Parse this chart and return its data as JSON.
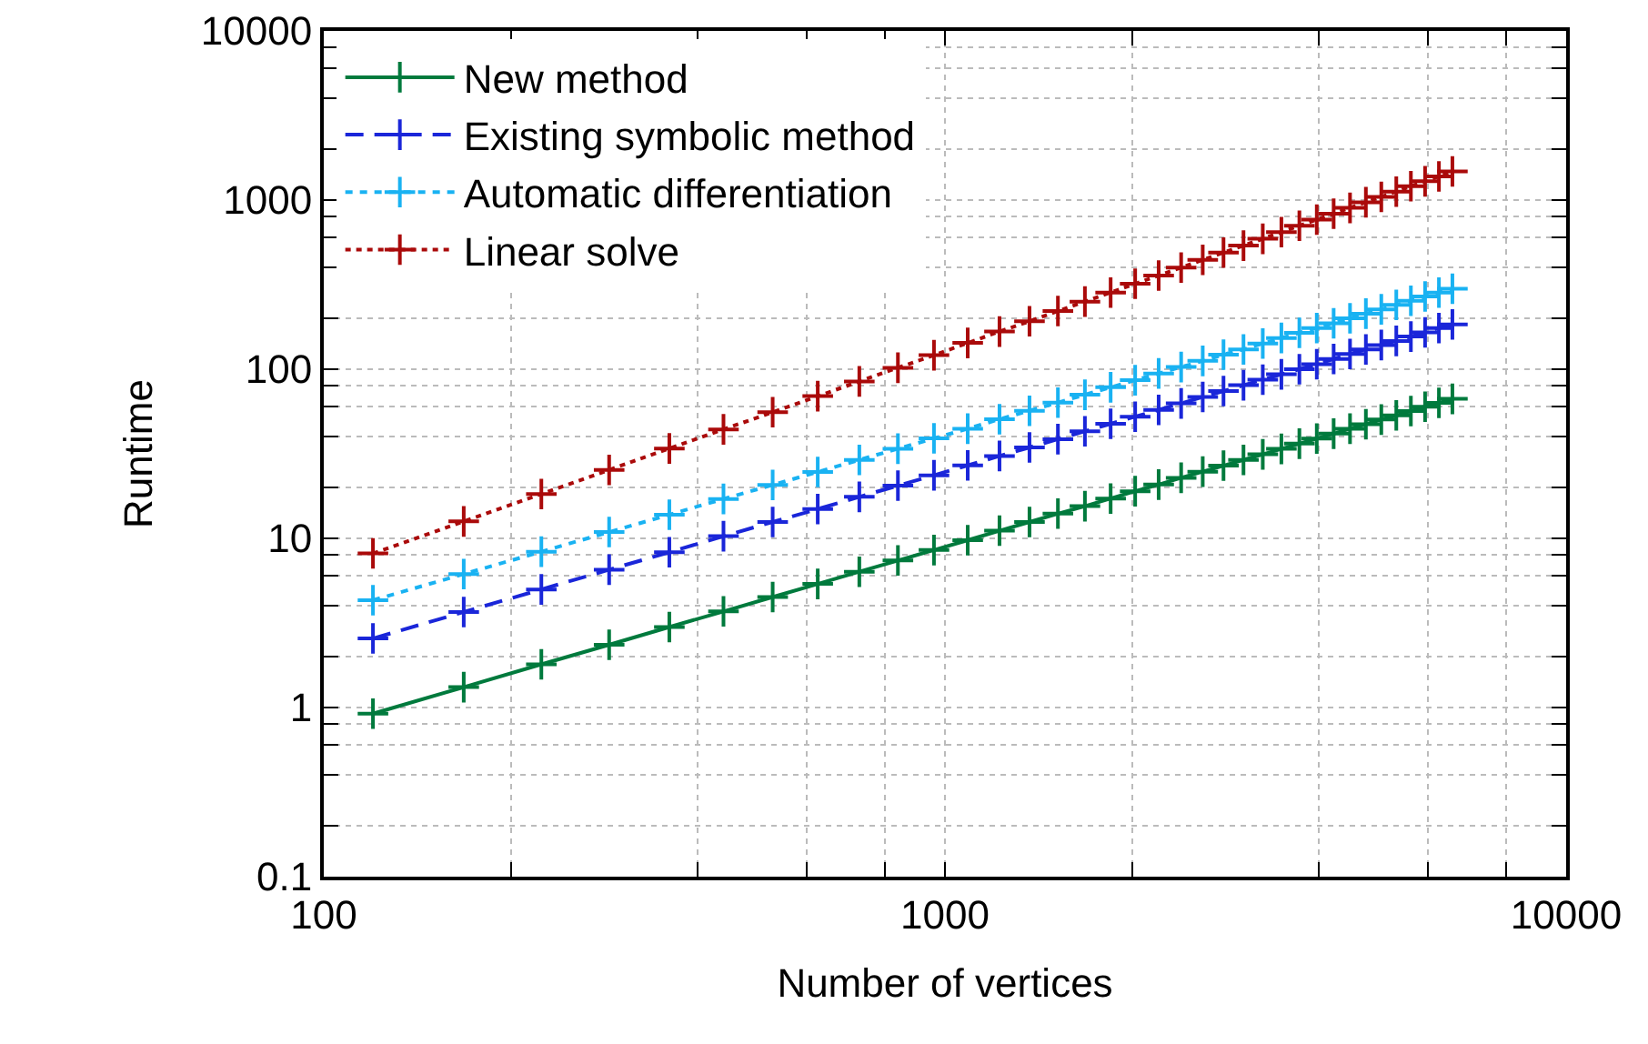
{
  "chart_data": {
    "type": "line",
    "xlabel": "Number of vertices",
    "ylabel": "Runtime",
    "log": "xy",
    "grid": true,
    "legend": "top left",
    "marker": "cross",
    "xlim": [
      100,
      10000
    ],
    "ylim": [
      0.1,
      10000
    ],
    "xticks": [
      100,
      {
        "value": 200,
        "label": null
      },
      {
        "value": 400,
        "label": null
      },
      {
        "value": 600,
        "label": null
      },
      {
        "value": 800,
        "label": null
      },
      1000,
      {
        "value": 2000,
        "label": null
      },
      {
        "value": 4000,
        "label": null
      },
      {
        "value": 6000,
        "label": null
      },
      {
        "value": 8000,
        "label": null
      },
      10000
    ],
    "yticks": [
      0.1,
      {
        "value": 0.2,
        "label": null
      },
      {
        "value": 0.4,
        "label": null
      },
      {
        "value": 0.6,
        "label": null
      },
      {
        "value": 0.8,
        "label": null
      },
      1,
      {
        "value": 2,
        "label": null
      },
      {
        "value": 4,
        "label": null
      },
      {
        "value": 6,
        "label": null
      },
      {
        "value": 8,
        "label": null
      },
      10,
      {
        "value": 20,
        "label": null
      },
      {
        "value": 40,
        "label": null
      },
      {
        "value": 60,
        "label": null
      },
      {
        "value": 80,
        "label": null
      },
      100,
      {
        "value": 200,
        "label": null
      },
      {
        "value": 400,
        "label": null
      },
      {
        "value": 600,
        "label": null
      },
      {
        "value": 800,
        "label": null
      },
      1000,
      {
        "value": 2000,
        "label": null
      },
      {
        "value": 4000,
        "label": null
      },
      {
        "value": 6000,
        "label": null
      },
      {
        "value": 8000,
        "label": null
      },
      10000
    ],
    "x": [
      120,
      168,
      224,
      288,
      360,
      440,
      528,
      624,
      728,
      840,
      960,
      1088,
      1224,
      1368,
      1520,
      1680,
      1848,
      2024,
      2208,
      2400,
      2600,
      2808,
      3024,
      3248,
      3480,
      3720,
      3968,
      4224,
      4488,
      4760,
      5040,
      5328,
      5624,
      5928,
      6240,
      6560
    ],
    "series": [
      {
        "name": "New method",
        "color": "#007a3d",
        "line_style": "solid",
        "values": [
          0.92,
          1.32,
          1.8,
          2.35,
          2.99,
          3.7,
          4.5,
          5.38,
          6.35,
          7.4,
          8.53,
          9.75,
          11.1,
          12.5,
          14,
          15.5,
          17.2,
          19,
          20.8,
          22.8,
          24.8,
          26.9,
          29.1,
          31.4,
          33.8,
          36.3,
          38.9,
          41.6,
          44.5,
          47.3,
          50.4,
          53.3,
          56.6,
          60,
          63.2,
          66.8
        ]
      },
      {
        "name": "Existing symbolic method",
        "color": "#1a26d9",
        "line_style": "dashed",
        "values": [
          2.56,
          3.67,
          4.99,
          6.53,
          8.28,
          10.3,
          12.5,
          14.9,
          17.6,
          20.5,
          23.6,
          27,
          30.7,
          34.5,
          38.6,
          43,
          47.6,
          52.4,
          57.5,
          62.8,
          68.5,
          74.3,
          80.4,
          86.7,
          93.3,
          100,
          107,
          115,
          123,
          131,
          139,
          147,
          156,
          165,
          175,
          184
        ]
      },
      {
        "name": "Automatic differentiation",
        "color": "#19b2f2",
        "line_style": "dashed",
        "values": [
          4.31,
          6.15,
          8.34,
          10.9,
          13.8,
          17.1,
          20.7,
          24.7,
          29.1,
          33.9,
          39,
          44.5,
          50.6,
          56.8,
          63.5,
          70.6,
          78.2,
          86.1,
          94.4,
          103,
          112,
          122,
          131,
          142,
          153,
          164,
          175,
          187,
          200,
          213,
          226,
          240,
          254,
          269,
          284,
          299
        ]
      },
      {
        "name": "Linear solve",
        "color": "#aa0a0a",
        "line_style": "dotted",
        "values": [
          8.15,
          12.6,
          18.3,
          25.4,
          34,
          44.1,
          55.7,
          69.3,
          84.7,
          102,
          121,
          143,
          167,
          192,
          221,
          251,
          284,
          320,
          358,
          399,
          443,
          489,
          538,
          590,
          646,
          705,
          766,
          830,
          899,
          971,
          1045,
          1122,
          1208,
          1291,
          1380,
          1476
        ]
      }
    ]
  }
}
